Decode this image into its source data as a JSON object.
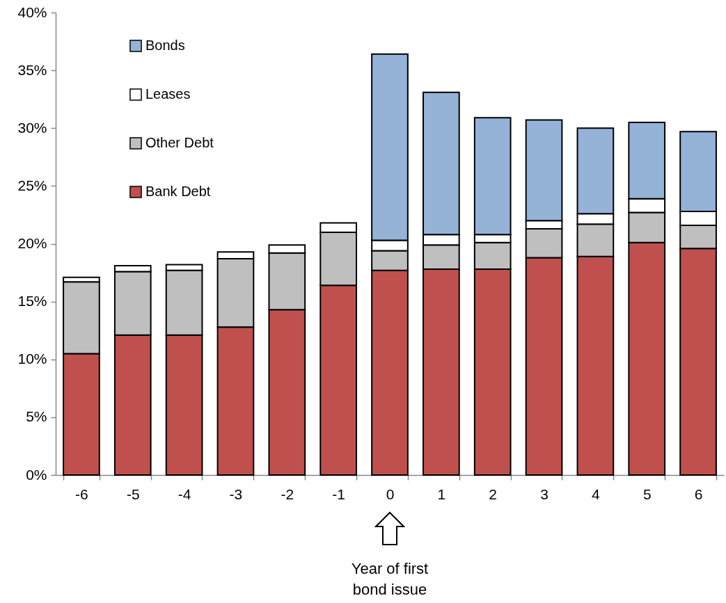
{
  "chart_data": {
    "type": "bar",
    "stacked": true,
    "categories": [
      "-6",
      "-5",
      "-4",
      "-3",
      "-2",
      "-1",
      "0",
      "1",
      "2",
      "3",
      "4",
      "5",
      "6"
    ],
    "series": [
      {
        "name": "Bank Debt",
        "color": "#c0504d",
        "values": [
          10.5,
          12.1,
          12.1,
          12.8,
          14.3,
          16.4,
          17.7,
          17.8,
          17.8,
          18.8,
          18.9,
          20.1,
          19.6
        ]
      },
      {
        "name": "Other Debt",
        "color": "#bfbfbf",
        "values": [
          6.2,
          5.5,
          5.6,
          5.9,
          4.9,
          4.6,
          1.7,
          2.1,
          2.3,
          2.5,
          2.8,
          2.6,
          2.0
        ]
      },
      {
        "name": "Leases",
        "color": "#ffffff",
        "values": [
          0.4,
          0.5,
          0.5,
          0.6,
          0.7,
          0.8,
          0.9,
          0.9,
          0.7,
          0.7,
          0.9,
          1.2,
          1.2
        ]
      },
      {
        "name": "Bonds",
        "color": "#95b3d7",
        "values": [
          null,
          null,
          null,
          null,
          null,
          null,
          16.1,
          12.3,
          10.1,
          8.7,
          7.4,
          6.6,
          6.9
        ]
      }
    ],
    "ylim": [
      0,
      40
    ],
    "yticks": [
      {
        "value": 0,
        "label": "0%"
      },
      {
        "value": 5,
        "label": "5%"
      },
      {
        "value": 10,
        "label": "10%"
      },
      {
        "value": 15,
        "label": "15%"
      },
      {
        "value": 20,
        "label": "20%"
      },
      {
        "value": 25,
        "label": "25%"
      },
      {
        "value": 30,
        "label": "30%"
      },
      {
        "value": 35,
        "label": "35%"
      },
      {
        "value": 40,
        "label": "40%"
      }
    ],
    "grid": false,
    "legend": "top left",
    "annotations": [
      "Year of first\nbond issue"
    ]
  }
}
